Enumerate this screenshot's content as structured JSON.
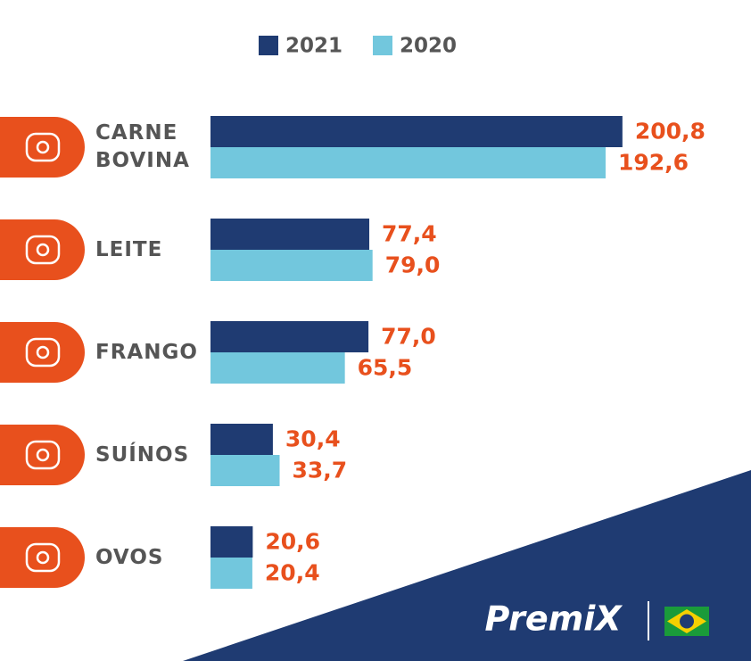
{
  "chart_data": {
    "type": "hbar",
    "categories": [
      "CARNE BOVINA",
      "LEITE",
      "FRANGO",
      "SUÍNOS",
      "OVOS"
    ],
    "series": [
      {
        "name": "2021",
        "color": "#1f3b72",
        "values": [
          200.8,
          77.4,
          77.0,
          30.4,
          20.6
        ],
        "value_labels": [
          "200,8",
          "77,4",
          "77,0",
          "30,4",
          "20,6"
        ]
      },
      {
        "name": "2020",
        "color": "#72c7dd",
        "values": [
          192.6,
          79.0,
          65.5,
          33.7,
          20.4
        ],
        "value_labels": [
          "192,6",
          "79,0",
          "65,5",
          "33,7",
          "20,4"
        ]
      }
    ],
    "label_color": "#e8501d",
    "logo": "PremiX"
  }
}
